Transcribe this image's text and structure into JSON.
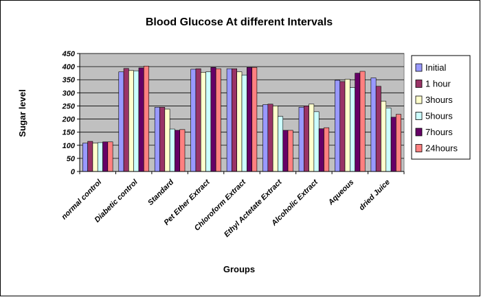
{
  "chart_data": {
    "type": "bar",
    "title": "Blood Glucose At different Intervals",
    "xlabel": "Groups",
    "ylabel": "Sugar level",
    "ylim": [
      0,
      450
    ],
    "yticks": [
      0,
      50,
      100,
      150,
      200,
      250,
      300,
      350,
      400,
      450
    ],
    "grid": true,
    "legend_position": "right",
    "plot_background": "#c0c0c0",
    "categories": [
      "normal control",
      "Diabetic control",
      "Standard",
      "Pet Ether Extract",
      "Chloroform Extract",
      "Ethyl Actetate Extract",
      "Alcoholic Extract",
      "Aqueous",
      "dried Juice"
    ],
    "series": [
      {
        "name": "Initial",
        "color": "#9999ff",
        "values": [
          108,
          380,
          245,
          390,
          392,
          255,
          245,
          348,
          357
        ]
      },
      {
        "name": "1 hour",
        "color": "#993366",
        "values": [
          115,
          393,
          245,
          392,
          392,
          257,
          250,
          343,
          325
        ]
      },
      {
        "name": "3hours",
        "color": "#ffffcc",
        "values": [
          108,
          385,
          238,
          378,
          380,
          250,
          257,
          352,
          268
        ]
      },
      {
        "name": "5hours",
        "color": "#ccffff",
        "values": [
          110,
          384,
          162,
          380,
          368,
          210,
          228,
          320,
          242
        ]
      },
      {
        "name": "7hours",
        "color": "#660066",
        "values": [
          113,
          395,
          157,
          397,
          397,
          157,
          163,
          375,
          207
        ]
      },
      {
        "name": "24hours",
        "color": "#ff8080",
        "values": [
          113,
          402,
          160,
          392,
          397,
          157,
          167,
          382,
          218
        ]
      }
    ]
  }
}
